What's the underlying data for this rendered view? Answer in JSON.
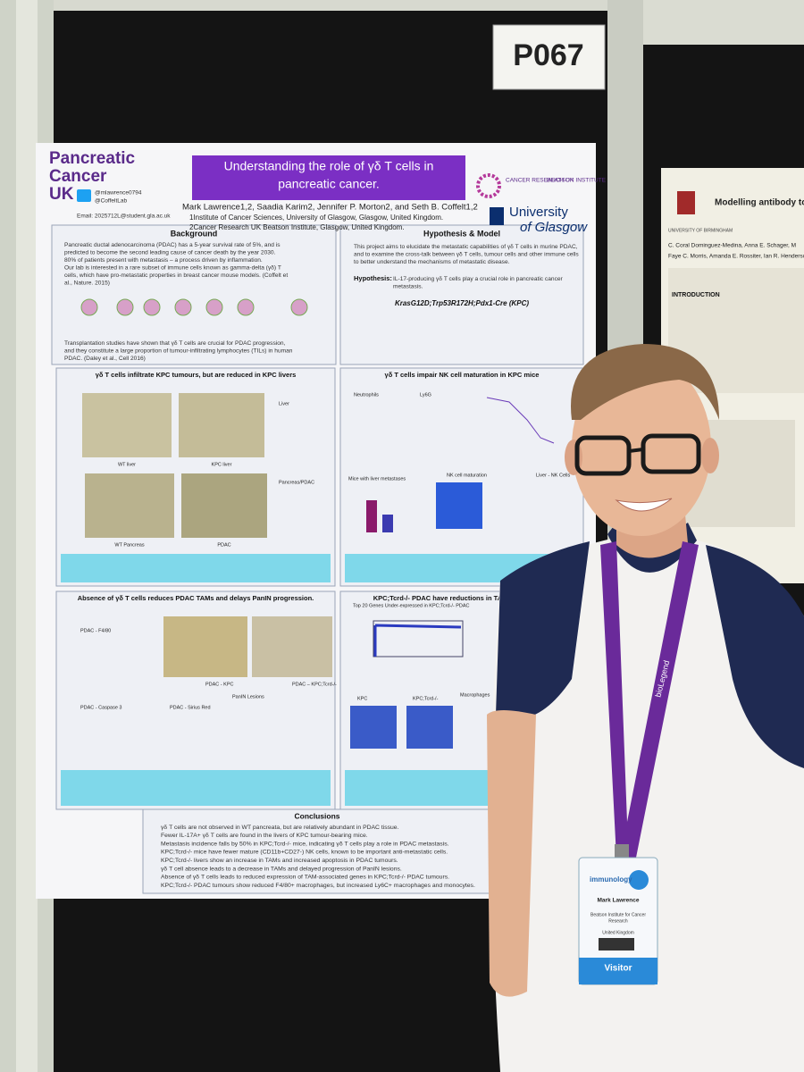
{
  "sign": "P067",
  "poster": {
    "logo": [
      "Pancreatic",
      "Cancer",
      "UK"
    ],
    "twitter": [
      "@mlawrence0794",
      "@CoffeltLab"
    ],
    "email": "Email: 2025712L@student.gla.ac.uk",
    "title_lines": [
      "Understanding the role of γδ T cells in",
      "pancreatic cancer."
    ],
    "authors": "Mark Lawrence1,2, Saadia Karim2, Jennifer P. Morton2, and Seth B. Coffelt1,2",
    "affiliations": [
      "1Institute of Cancer Sciences, University of Glasgow, Glasgow, United Kingdom.",
      "2Cancer Research UK Beatson Institute, Glasgow, United Kingdom."
    ],
    "partner_logos": [
      "CANCER RESEARCH UK",
      "BEATSON INSTITUTE",
      "University",
      "of Glasgow"
    ],
    "background": {
      "heading": "Background",
      "lines": [
        "Pancreatic ductal adenocarcinoma (PDAC) has a 5-year survival rate of 5%, and is",
        "predicted to become the second leading cause of cancer death by the year 2030.",
        "80% of patients present with metastasis – a process driven by inflammation.",
        "Our lab is interested in a rare subset of immune cells known as gamma-delta (γδ) T",
        "cells, which have pro-metastatic properties in breast cancer mouse models. (Coffelt et",
        "al., Nature. 2015)"
      ],
      "lines_after": [
        "Transplantation studies have shown that γδ T cells are crucial for PDAC progression,",
        "and they constitute a large proportion of tumour-infiltrating lymphocytes (TILs) in human",
        "PDAC. (Daley et al., Cell 2016)"
      ]
    },
    "hypothesis": {
      "heading": "Hypothesis & Model",
      "lines": [
        "This project aims to elucidate the metastatic capabilities of γδ T cells in murine PDAC,",
        "and to examine the cross-talk between γδ T cells, tumour cells and other immune cells",
        "to better understand the mechanisms of metastatic disease."
      ],
      "label": "Hypothesis:",
      "statement": [
        "IL-17-producing γδ T cells play a crucial role in pancreatic cancer",
        "metastasis."
      ],
      "model": "KrasG12D;Trp53R172H;Pdx1-Cre (KPC)"
    },
    "panels": [
      {
        "heading": "γδ T cells infiltrate KPC tumours, but are reduced in KPC livers",
        "labels": [
          "WT liver",
          "KPC liver",
          "WT Pancreas",
          "PDAC",
          "Liver",
          "Pancreas/PDAC"
        ]
      },
      {
        "heading": "γδ T cells impair NK cell maturation in KPC mice",
        "labels": [
          "Neutrophils",
          "Ly6G",
          "NK cell maturation",
          "Mice with liver metastases",
          "Liver - NK Cells"
        ]
      },
      {
        "heading": "Absence of γδ T cells reduces PDAC TAMs and delays PanIN progression.",
        "labels": [
          "PDAC - F4/80",
          "PDAC - KPC",
          "PDAC – KPC;Tcrd-/-",
          "PDAC - Caspase 3",
          "PDAC - Sirius Red",
          "PanIN Lesions"
        ]
      },
      {
        "heading": "KPC;Tcrd-/- PDAC have reductions in TAM-associated g",
        "labels": [
          "Top 20 Genes Under-expressed in KPC;Tcrd-/- PDAC",
          "KPC",
          "KPC;Tcrd-/-",
          "Macrophages"
        ]
      }
    ],
    "conclusions": {
      "heading": "Conclusions",
      "lines": [
        "γδ T cells are not observed in WT pancreata, but are relatively abundant in PDAC tissue.",
        "Fewer IL-17A+ γδ T cells are found in the livers of KPC tumour-bearing mice.",
        "Metastasis incidence falls by 50% in KPC;Tcrd-/- mice, indicating γδ T cells play a role in PDAC metastasis.",
        "KPC;Tcrd-/- mice have fewer mature (CD11b+CD27-) NK cells, known to be important anti-metastatic cells.",
        "KPC;Tcrd-/- livers show an increase in TAMs and increased apoptosis in PDAC tumours.",
        "γδ T cell absence leads to a decrease in TAMs and delayed progression of PanIN lesions.",
        "Absence of γδ T cells leads to reduced expression of TAM-associated genes in KPC;Tcrd-/- PDAC tumours.",
        "KPC;Tcrd-/- PDAC tumours show reduced F4/80+ macrophages, but increased Ly6C+ macrophages and monocytes."
      ]
    }
  },
  "side_poster": {
    "institution": "UNIVERSITY OF BIRMINGHAM",
    "title": "Modelling antibody to Ompl",
    "authors": [
      "C. Coral Dominguez-Medina, Anna E. Schager, M",
      "Faye C. Morris, Amanda E. Rossiter, Ian R. Henderson"
    ],
    "heading": "INTRODUCTION"
  },
  "badge": {
    "brand": "immunology",
    "name": "Mark Lawrence",
    "org": [
      "Beatson Institute for Cancer",
      "Research"
    ],
    "country": "United Kingdom",
    "type": "Visitor",
    "lanyard": "bioLegend"
  }
}
